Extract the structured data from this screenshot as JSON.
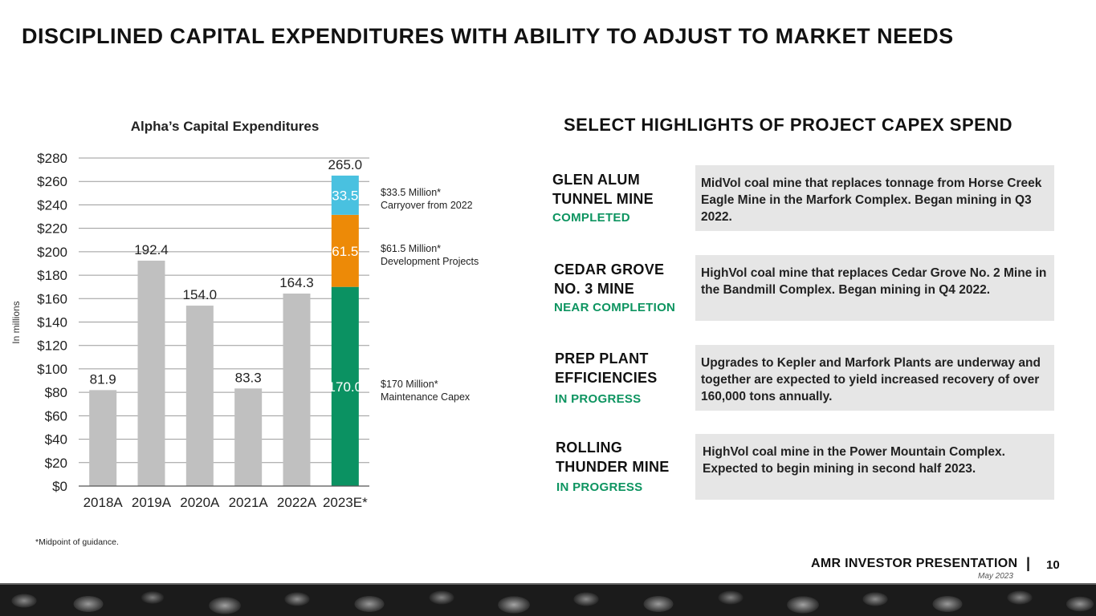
{
  "page": {
    "title": "DISCIPLINED CAPITAL EXPENDITURES WITH ABILITY TO ADJUST TO MARKET NEEDS",
    "footnote": "*Midpoint of guidance."
  },
  "chart_data": {
    "type": "bar",
    "title": "Alpha’s Capital Expenditures",
    "ylabel": "In millions",
    "ylim": [
      0,
      280
    ],
    "yticks": [
      "$0",
      "$20",
      "$40",
      "$60",
      "$80",
      "$100",
      "$120",
      "$140",
      "$160",
      "$180",
      "$200",
      "$220",
      "$240",
      "$260",
      "$280"
    ],
    "categories": [
      "2018A",
      "2019A",
      "2020A",
      "2021A",
      "2022A",
      "2023E*"
    ],
    "values": [
      81.9,
      192.4,
      154.0,
      83.3,
      164.3,
      265.0
    ],
    "value_labels": [
      "81.9",
      "192.4",
      "154.0",
      "83.3",
      "164.3",
      "265.0"
    ],
    "stack_2023": [
      {
        "value": 170.0,
        "label": "170.0",
        "color": "#0b9262"
      },
      {
        "value": 61.5,
        "label": "61.5",
        "color": "#ed8a07"
      },
      {
        "value": 33.5,
        "label": "33.5",
        "color": "#49c1e0"
      }
    ],
    "colors": {
      "bar": "#c0c0c0",
      "grid": "#9a9a9a"
    },
    "grid": true
  },
  "annotations": [
    {
      "line1": "$33.5 Million*",
      "line2": "Carryover from 2022"
    },
    {
      "line1": "$61.5 Million*",
      "line2": "Development Projects"
    },
    {
      "line1": "$170 Million*",
      "line2": "Maintenance Capex"
    }
  ],
  "highlights": {
    "title": "SELECT HIGHLIGHTS OF PROJECT CAPEX SPEND",
    "status_color": "#0d9460",
    "projects": [
      {
        "name_line1": "GLEN ALUM",
        "name_line2": "TUNNEL MINE",
        "status": "COMPLETED",
        "description": "MidVol coal mine that replaces tonnage from Horse Creek Eagle Mine in the Marfork Complex. Began mining in Q3 2022."
      },
      {
        "name_line1": "CEDAR GROVE",
        "name_line2": "NO. 3 MINE",
        "status": "NEAR COMPLETION",
        "description": "HighVol coal mine that replaces Cedar Grove No. 2 Mine in the Bandmill Complex. Began mining in Q4 2022."
      },
      {
        "name_line1": "PREP PLANT",
        "name_line2": "EFFICIENCIES",
        "status": "IN PROGRESS",
        "description": "Upgrades to Kepler and Marfork Plants are underway and together are expected to yield increased recovery of over 160,000 tons annually."
      },
      {
        "name_line1": "ROLLING",
        "name_line2": "THUNDER MINE",
        "status": "IN PROGRESS",
        "description": "HighVol coal mine in the Power Mountain Complex. Expected to begin mining in second half 2023."
      }
    ]
  },
  "footer": {
    "title": "AMR INVESTOR PRESENTATION",
    "separator": "|",
    "date": "May 2023",
    "page_number": "10"
  }
}
